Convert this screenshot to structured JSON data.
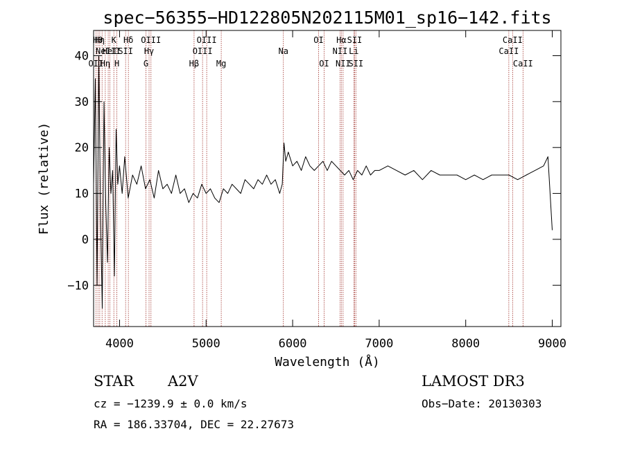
{
  "chart_data": {
    "type": "line",
    "title": "spec−56355−HD122805N202115M01_sp16−142.fits",
    "xlabel": "Wavelength (Å)",
    "ylabel": "Flux (relative)",
    "xlim": [
      3700,
      9100
    ],
    "ylim": [
      -19,
      45.5
    ],
    "xticks": [
      {
        "value": 4000,
        "label": "4000"
      },
      {
        "value": 5000,
        "label": "5000"
      },
      {
        "value": 6000,
        "label": "6000"
      },
      {
        "value": 7000,
        "label": "7000"
      },
      {
        "value": 8000,
        "label": "8000"
      },
      {
        "value": 9000,
        "label": "9000"
      }
    ],
    "yticks": [
      {
        "value": -10,
        "label": "−10"
      },
      {
        "value": 0,
        "label": "0"
      },
      {
        "value": 10,
        "label": "10"
      },
      {
        "value": 20,
        "label": "20"
      },
      {
        "value": 30,
        "label": "30"
      },
      {
        "value": 40,
        "label": "40"
      }
    ],
    "series": [
      {
        "name": "flux",
        "x": [
          3700,
          3720,
          3740,
          3760,
          3780,
          3800,
          3820,
          3840,
          3860,
          3880,
          3900,
          3920,
          3940,
          3960,
          3980,
          4000,
          4030,
          4060,
          4100,
          4150,
          4200,
          4250,
          4300,
          4350,
          4400,
          4450,
          4500,
          4550,
          4600,
          4650,
          4700,
          4750,
          4800,
          4850,
          4900,
          4950,
          5000,
          5050,
          5100,
          5150,
          5200,
          5250,
          5300,
          5350,
          5400,
          5450,
          5500,
          5550,
          5600,
          5650,
          5700,
          5750,
          5800,
          5850,
          5880,
          5900,
          5920,
          5950,
          6000,
          6050,
          6100,
          6150,
          6200,
          6250,
          6300,
          6350,
          6400,
          6450,
          6500,
          6550,
          6600,
          6650,
          6700,
          6750,
          6800,
          6850,
          6900,
          6950,
          7000,
          7100,
          7200,
          7300,
          7400,
          7500,
          7600,
          7700,
          7800,
          7900,
          8000,
          8100,
          8200,
          8300,
          8400,
          8500,
          8600,
          8700,
          8800,
          8900,
          8950,
          9000
        ],
        "values": [
          12,
          35,
          -10,
          40,
          5,
          -15,
          30,
          8,
          -5,
          20,
          10,
          15,
          -8,
          24,
          12,
          16,
          10,
          18,
          9,
          14,
          12,
          16,
          11,
          13,
          9,
          15,
          11,
          12,
          10,
          14,
          10,
          11,
          8,
          10,
          9,
          12,
          10,
          11,
          9,
          8,
          11,
          10,
          12,
          11,
          10,
          13,
          12,
          11,
          13,
          12,
          14,
          12,
          13,
          10,
          12,
          21,
          17,
          19,
          16,
          17,
          15,
          18,
          16,
          15,
          16,
          17,
          15,
          17,
          16,
          15,
          14,
          15,
          13,
          15,
          14,
          16,
          14,
          15,
          15,
          16,
          15,
          14,
          15,
          13,
          15,
          14,
          14,
          14,
          13,
          14,
          13,
          14,
          14,
          14,
          13,
          14,
          15,
          16,
          18,
          2
        ]
      }
    ],
    "reference_lines": [
      {
        "wavelength": 3727,
        "label": "OII",
        "row": 3
      },
      {
        "wavelength": 3750,
        "label": "Hθ",
        "row": 1
      },
      {
        "wavelength": 3771,
        "label": "Hη",
        "row": 1
      },
      {
        "wavelength": 3798,
        "label": "",
        "row": 0
      },
      {
        "wavelength": 3835,
        "label": "Hη",
        "row": 3
      },
      {
        "wavelength": 3869,
        "label": "NeIII",
        "row": 2
      },
      {
        "wavelength": 3889,
        "label": "HeI",
        "row": 2
      },
      {
        "wavelength": 3934,
        "label": "K",
        "row": 1
      },
      {
        "wavelength": 3969,
        "label": "H",
        "row": 3
      },
      {
        "wavelength": 4070,
        "label": "SII",
        "row": 2
      },
      {
        "wavelength": 4102,
        "label": "Hδ",
        "row": 1
      },
      {
        "wavelength": 4305,
        "label": "G",
        "row": 3
      },
      {
        "wavelength": 4341,
        "label": "Hγ",
        "row": 2
      },
      {
        "wavelength": 4363,
        "label": "OIII",
        "row": 1
      },
      {
        "wavelength": 4861,
        "label": "Hβ",
        "row": 3
      },
      {
        "wavelength": 4959,
        "label": "OIII",
        "row": 2
      },
      {
        "wavelength": 5007,
        "label": "OIII",
        "row": 1
      },
      {
        "wavelength": 5175,
        "label": "Mg",
        "row": 3
      },
      {
        "wavelength": 5893,
        "label": "Na",
        "row": 2
      },
      {
        "wavelength": 6300,
        "label": "OI",
        "row": 1
      },
      {
        "wavelength": 6364,
        "label": "OI",
        "row": 3
      },
      {
        "wavelength": 6548,
        "label": "NII",
        "row": 2
      },
      {
        "wavelength": 6563,
        "label": "Hα",
        "row": 1
      },
      {
        "wavelength": 6583,
        "label": "NII",
        "row": 3
      },
      {
        "wavelength": 6707,
        "label": "Li",
        "row": 2
      },
      {
        "wavelength": 6716,
        "label": "SII",
        "row": 1
      },
      {
        "wavelength": 6731,
        "label": "SII",
        "row": 3
      },
      {
        "wavelength": 8498,
        "label": "CaII",
        "row": 2
      },
      {
        "wavelength": 8542,
        "label": "CaII",
        "row": 1
      },
      {
        "wavelength": 8662,
        "label": "CaII",
        "row": 3
      }
    ]
  },
  "info": {
    "object_class": "STAR",
    "subclass": "A2V",
    "survey": "LAMOST DR3",
    "velocity": "cz = −1239.9 ± 0.0 km/s",
    "obs_date": "Obs−Date: 20130303",
    "coords": "RA = 186.33704, DEC =  22.27673"
  },
  "colors": {
    "spectrum": "#000000",
    "reference_line": "#a0302a",
    "axis": "#000000"
  }
}
